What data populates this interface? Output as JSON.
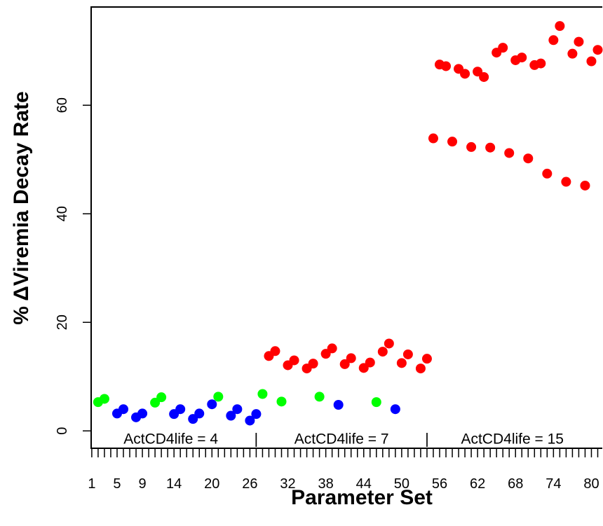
{
  "chart_data": {
    "type": "scatter",
    "xlabel": "Parameter Set",
    "ylabel": "% ΔViremia Decay Rate",
    "xlim": [
      0.9,
      81.5
    ],
    "ylim": [
      -3.2,
      78.1
    ],
    "x_ticks": [
      1,
      5,
      9,
      14,
      20,
      26,
      32,
      38,
      44,
      50,
      56,
      62,
      68,
      74,
      80
    ],
    "y_ticks": [
      0,
      20,
      40,
      60
    ],
    "grid": false,
    "series": [
      {
        "color": "#00ff00",
        "x": [
          2,
          3,
          11,
          12,
          21,
          28,
          31,
          37,
          46
        ],
        "y": [
          5.3,
          5.9,
          5.2,
          6.2,
          6.3,
          6.8,
          5.4,
          6.3,
          5.3
        ]
      },
      {
        "color": "#0000ff",
        "x": [
          5,
          6,
          8,
          9,
          14,
          15,
          17,
          18,
          20,
          23,
          24,
          26,
          27,
          40,
          49
        ],
        "y": [
          3.2,
          4.0,
          2.5,
          3.2,
          3.1,
          4.0,
          2.2,
          3.2,
          4.9,
          2.8,
          4.0,
          1.9,
          3.1,
          4.8,
          4.0
        ]
      },
      {
        "color": "#ff0000",
        "x": [
          29,
          30,
          32,
          33,
          35,
          36,
          38,
          39,
          41,
          42,
          44,
          45,
          47,
          48,
          50,
          51,
          53,
          54,
          55,
          56,
          57,
          58,
          59,
          60,
          61,
          62,
          63,
          64,
          65,
          66,
          67,
          68,
          69,
          70,
          71,
          72,
          73,
          74,
          75,
          76,
          77,
          78,
          79,
          80,
          81
        ],
        "y": [
          13.8,
          14.7,
          12.1,
          13.0,
          11.5,
          12.4,
          14.2,
          15.2,
          12.3,
          13.4,
          11.6,
          12.6,
          14.6,
          16.1,
          12.5,
          14.1,
          11.5,
          13.3,
          53.9,
          67.5,
          67.2,
          53.3,
          66.7,
          65.8,
          52.3,
          66.2,
          65.2,
          52.2,
          69.7,
          70.6,
          51.2,
          68.3,
          68.8,
          50.2,
          67.4,
          67.7,
          47.4,
          72.0,
          74.6,
          45.9,
          69.5,
          71.7,
          45.2,
          68.1,
          70.2
        ]
      }
    ],
    "annotations": [
      {
        "text": "ActCD4life = 4",
        "x": 13.5,
        "y": -1.5
      },
      {
        "text": "|",
        "x": 27,
        "y": -1.5
      },
      {
        "text": "ActCD4life = 7",
        "x": 40.5,
        "y": -1.5
      },
      {
        "text": "|",
        "x": 54,
        "y": -1.5
      },
      {
        "text": "ActCD4life = 15",
        "x": 67.5,
        "y": -1.5
      }
    ]
  }
}
